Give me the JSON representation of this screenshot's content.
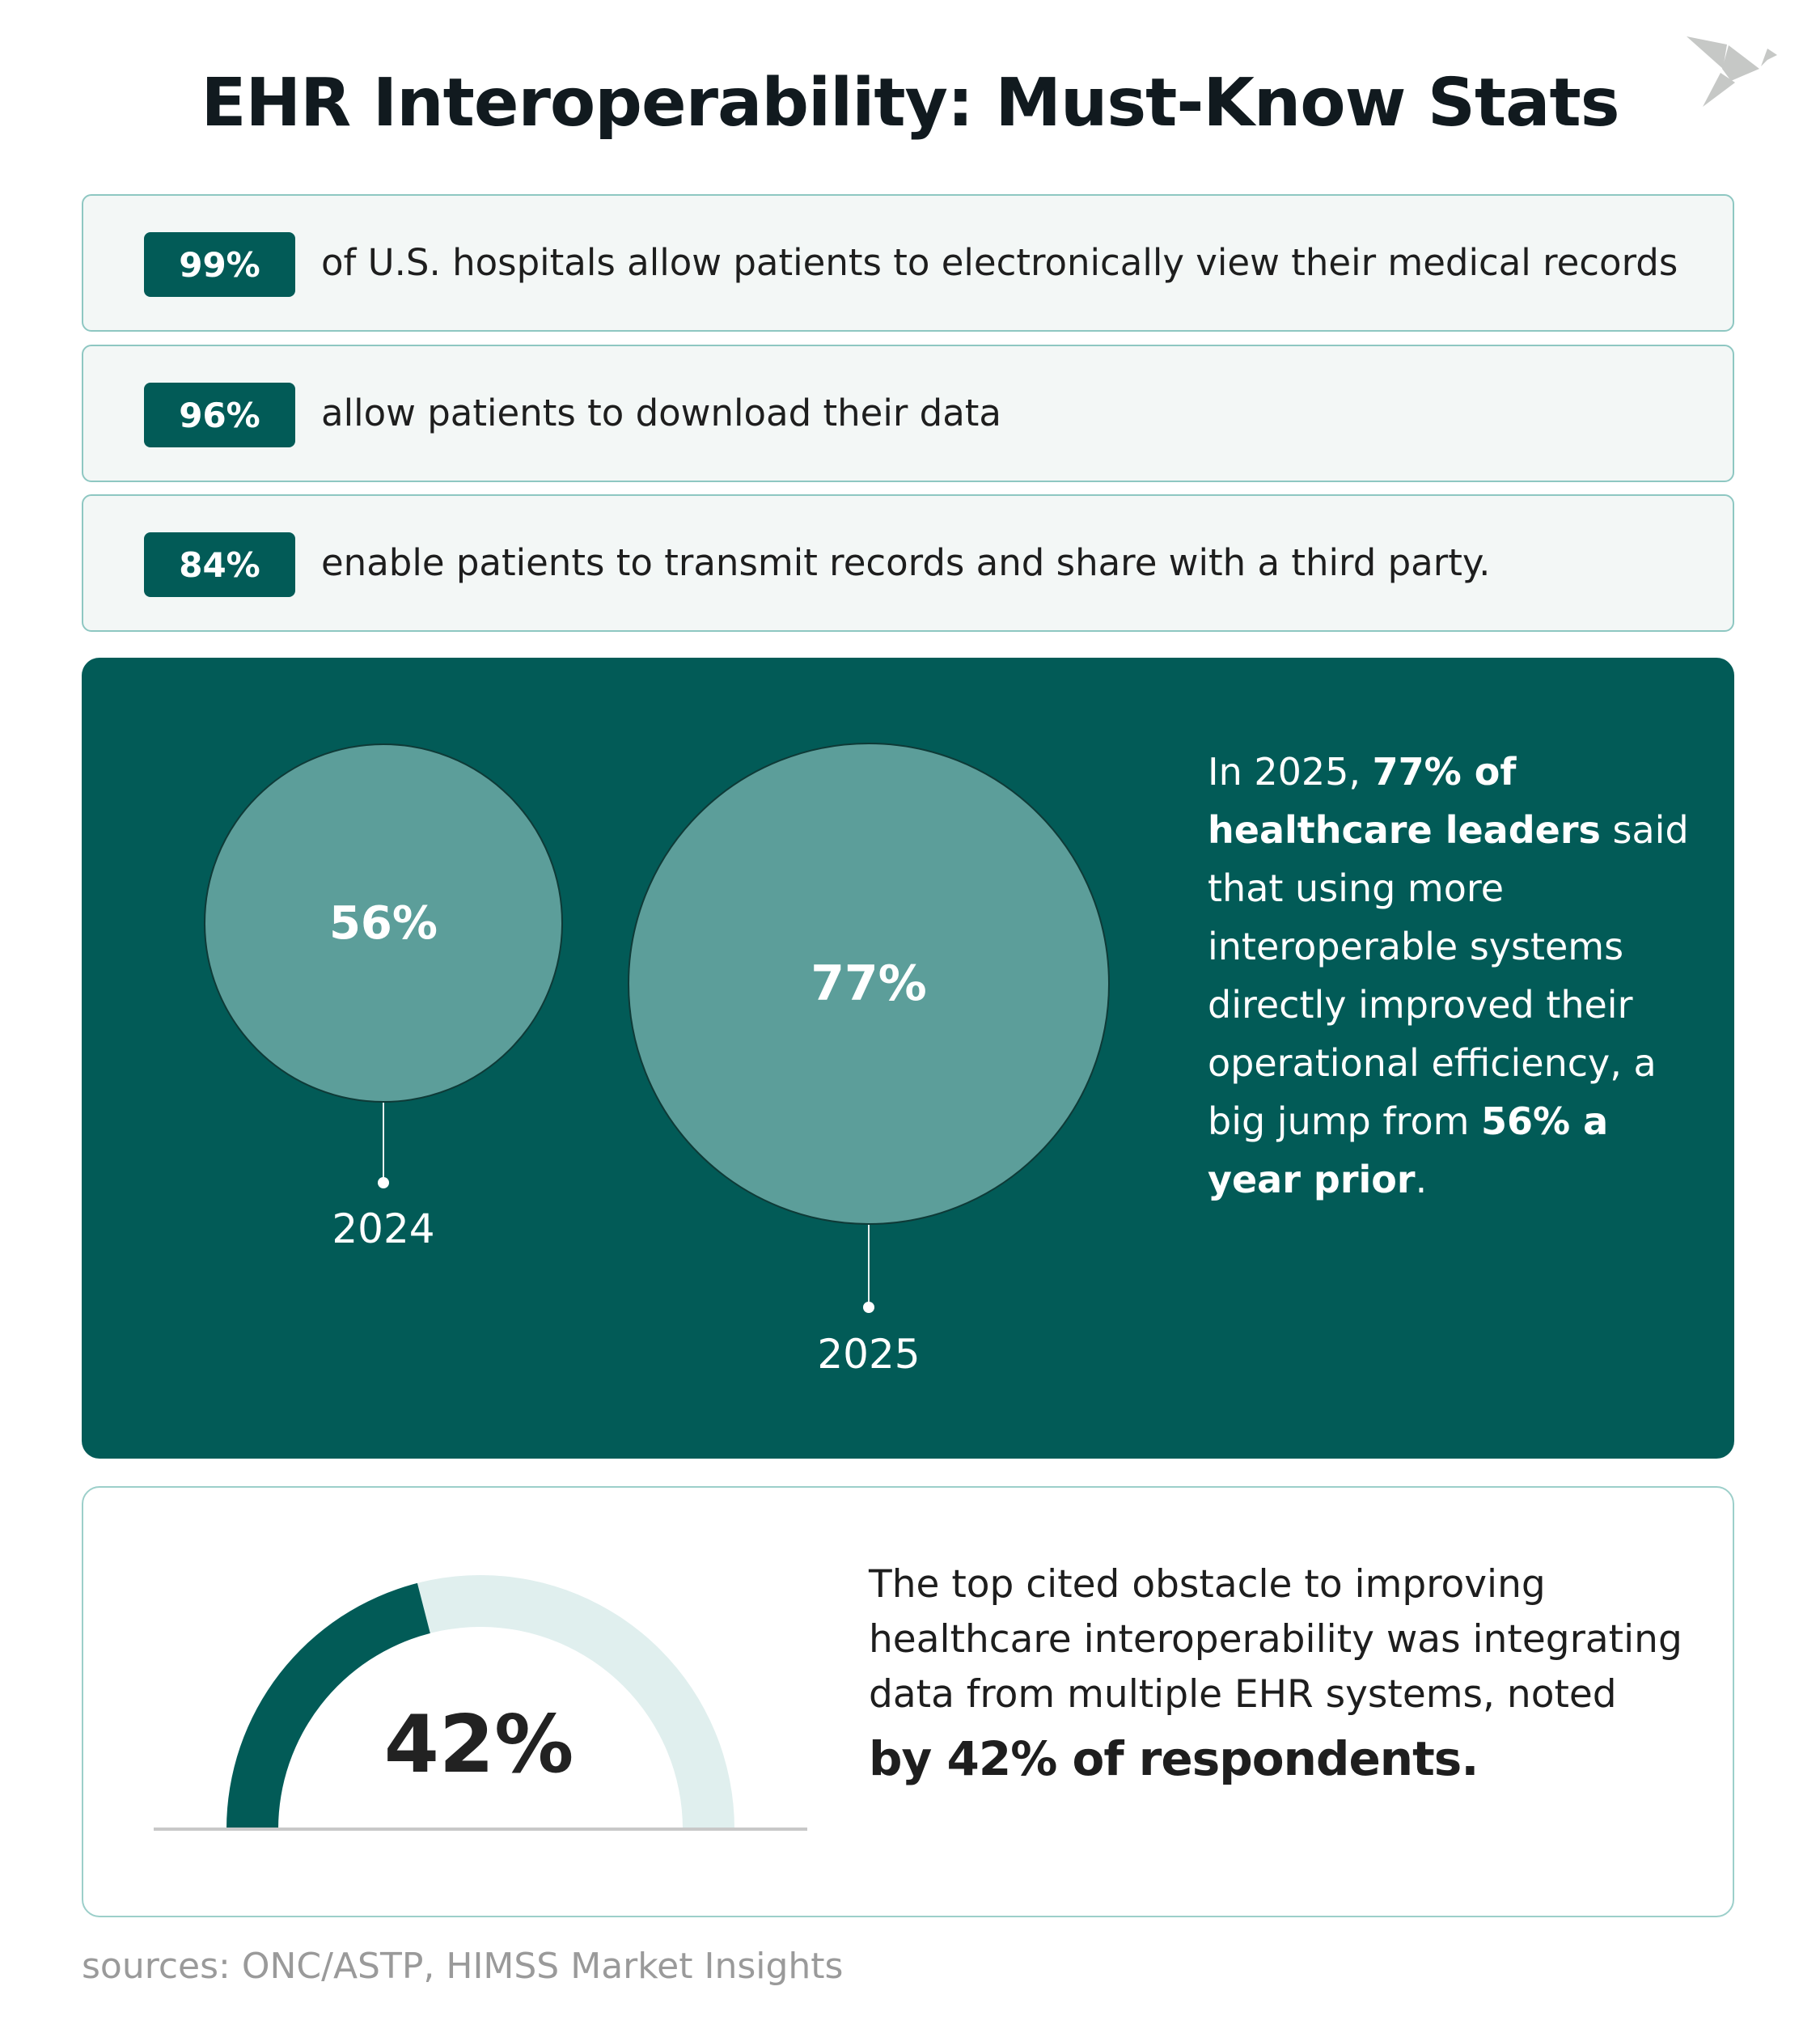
{
  "title": "EHR Interoperability: Must-Know Stats",
  "logo": {
    "icon": "origami-bird-icon",
    "color": "#c6c8c6"
  },
  "colors": {
    "accent": "#025b57",
    "circle": "#5c9e9a",
    "row_bg": "#f3f7f6",
    "row_border": "#8ec7c2",
    "gauge_track": "#e0efee"
  },
  "stats": [
    {
      "value": "99%",
      "text": "of U.S. hospitals allow patients to electronically view their medical records"
    },
    {
      "value": "96%",
      "text": "allow patients to download their data"
    },
    {
      "value": "84%",
      "text": "enable patients to transmit records and share with a third party."
    }
  ],
  "comparison": {
    "bubbles": [
      {
        "label": "56%",
        "year": "2024",
        "value": 56
      },
      {
        "label": "77%",
        "year": "2025",
        "value": 77
      }
    ],
    "text": {
      "p1": "In 2025, ",
      "b1": "77% of healthcare leaders",
      "p2": " said that using more interoperable systems directly improved their operational efficiency, a big jump from ",
      "b2": "56% a year prior",
      "p3": "."
    }
  },
  "obstacle": {
    "gauge_value": 42,
    "gauge_label": "42%",
    "text": "The top cited obstacle to improving healthcare interoperability was integrating data from multiple EHR systems, noted",
    "bold": "by 42% of respondents."
  },
  "sources": "sources: ONC/ASTP, HIMSS Market Insights"
}
